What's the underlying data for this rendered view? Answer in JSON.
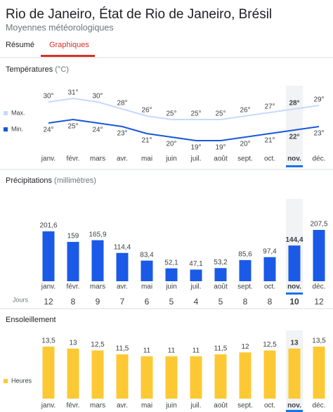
{
  "header": {
    "title": "Rio de Janeiro, État de Rio de Janeiro, Brésil",
    "subtitle": "Moyennes météorologiques"
  },
  "tabs": {
    "items": [
      "Résumé",
      "Graphiques"
    ],
    "active": 1
  },
  "chart_data": [
    {
      "type": "line",
      "title": "Températures",
      "unit": "(°C)",
      "selected": 10,
      "categories": [
        "janv.",
        "févr.",
        "mars",
        "avr.",
        "mai",
        "juin",
        "juil.",
        "août",
        "sept.",
        "oct.",
        "nov.",
        "déc."
      ],
      "series": [
        {
          "name": "Max.",
          "color": "#c6dafc",
          "values": [
            30,
            31,
            30,
            28,
            26,
            25,
            25,
            25,
            26,
            27,
            28,
            29
          ],
          "value_labels": [
            "30°",
            "31°",
            "30°",
            "28°",
            "26°",
            "25°",
            "25°",
            "25°",
            "26°",
            "27°",
            "28°",
            "29°"
          ]
        },
        {
          "name": "Min.",
          "color": "#1a57d9",
          "values": [
            24,
            25,
            24,
            23,
            21,
            20,
            19,
            19,
            20,
            21,
            22,
            23
          ],
          "value_labels": [
            "24°",
            "25°",
            "24°",
            "23°",
            "21°",
            "20°",
            "19°",
            "19°",
            "20°",
            "21°",
            "22°",
            "23°"
          ]
        }
      ]
    },
    {
      "type": "bar",
      "title": "Précipitations",
      "unit": "(millimètres)",
      "selected": 10,
      "color": "#1a5ae6",
      "categories": [
        "janv.",
        "févr.",
        "mars",
        "avr.",
        "mai",
        "juin",
        "juil.",
        "août",
        "sept.",
        "oct.",
        "nov.",
        "déc."
      ],
      "values": [
        201.6,
        159,
        165.9,
        114.4,
        83.4,
        52.1,
        47.1,
        53.2,
        85.6,
        97.4,
        144.4,
        207.5
      ],
      "value_labels": [
        "201,6",
        "159",
        "165,9",
        "114,4",
        "83,4",
        "52,1",
        "47,1",
        "53,2",
        "85,6",
        "97,4",
        "144,4",
        "207,5"
      ],
      "days": {
        "label": "Jours",
        "values": [
          12,
          8,
          9,
          7,
          6,
          5,
          4,
          5,
          8,
          8,
          10,
          12
        ]
      }
    },
    {
      "type": "bar",
      "title": "Ensoleillement",
      "selected": 10,
      "categories": [
        "janv.",
        "févr.",
        "mars",
        "avr.",
        "mai",
        "juin",
        "juil.",
        "août",
        "sept.",
        "oct.",
        "nov.",
        "déc."
      ],
      "series": [
        {
          "name": "Heures",
          "color": "#fcc934",
          "values": [
            13.5,
            13,
            12.5,
            11.5,
            11,
            11,
            11,
            11.5,
            12,
            12.5,
            13,
            13.5
          ],
          "value_labels": [
            "13,5",
            "13",
            "12,5",
            "11,5",
            "11",
            "11",
            "11",
            "11,5",
            "12",
            "12,5",
            "13",
            "13,5"
          ]
        }
      ]
    }
  ]
}
